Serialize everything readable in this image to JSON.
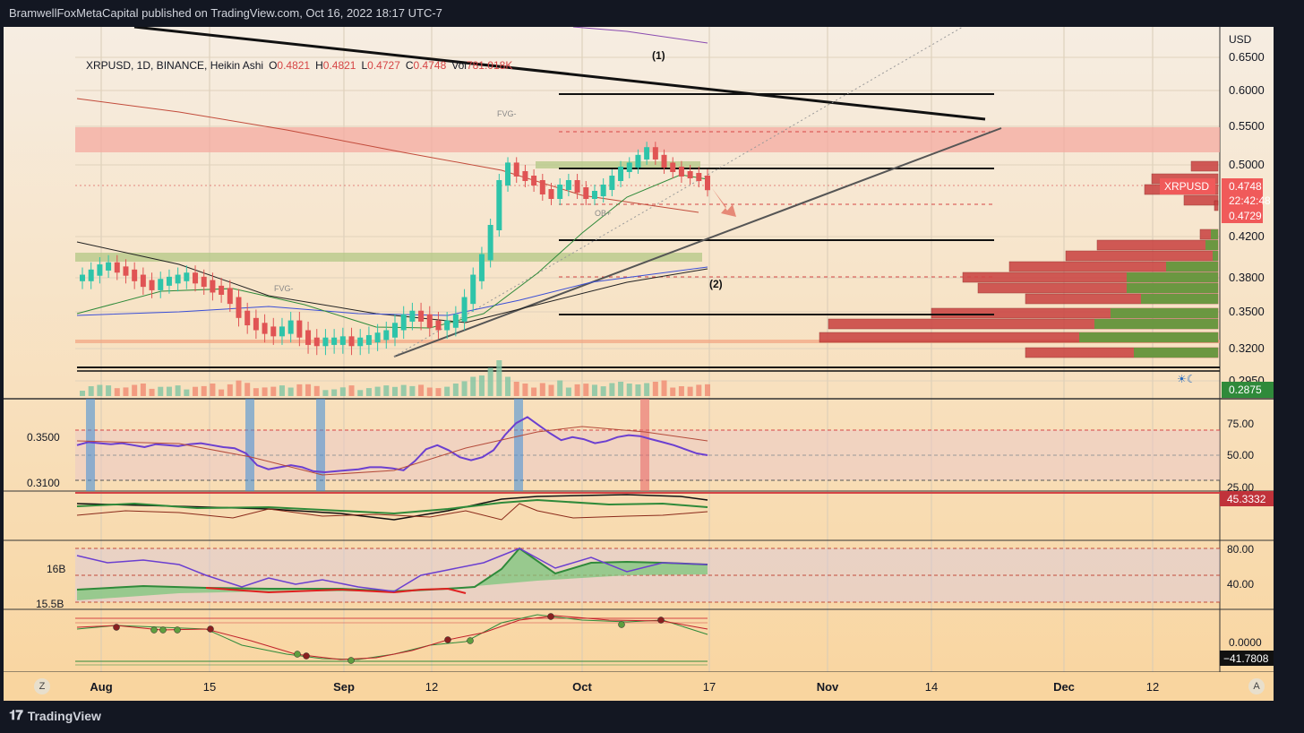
{
  "header": {
    "published_by": "BramwellFoxMetaCapital published on TradingView.com, Oct 16, 2022 18:17 UTC-7"
  },
  "legend": {
    "symbol": "XRPUSD, 1D, BINANCE, Heikin Ashi",
    "o_label": "O",
    "o_value": "0.4821",
    "h_label": "H",
    "h_value": "0.4821",
    "l_label": "L",
    "l_value": "0.4727",
    "c_label": "C",
    "c_value": "0.4748",
    "vol_label": "Vol",
    "vol_value": "781.018K"
  },
  "footer": {
    "brand": "TradingView",
    "zoom_left": "Z",
    "auto_right": "A"
  },
  "colors": {
    "background_top": "#f7ece0",
    "background_bottom": "#f8d7a6",
    "up": "#2ec4a9",
    "down": "#e05454",
    "resistance_zone": "#f4a9a0",
    "support_zone": "#b6c98a",
    "price_tag": "#f05a5a",
    "green_tag": "#2f8a3a"
  },
  "chart_data": [
    {
      "type": "line",
      "title": "XRPUSD, 1D, BINANCE, Heikin Ashi",
      "currency": "USD",
      "x_labels": [
        "Aug",
        "15",
        "Sep",
        "12",
        "Oct",
        "17",
        "Nov",
        "14",
        "Dec",
        "12"
      ],
      "y_ticks": [
        "0.6500",
        "0.6000",
        "0.5500",
        "0.5000",
        "0.4200",
        "0.3800",
        "0.3500",
        "0.3200",
        "0.2950"
      ],
      "ylim": [
        0.29,
        0.67
      ],
      "grid": true,
      "series": [
        {
          "values": [
            0.38,
            0.385,
            0.39,
            0.392,
            0.388,
            0.385,
            0.38,
            0.375,
            0.372,
            0.376,
            0.378,
            0.38,
            0.382,
            0.378,
            0.375,
            0.37,
            0.368,
            0.36,
            0.348,
            0.342,
            0.338,
            0.335,
            0.333,
            0.335,
            0.34,
            0.332,
            0.326,
            0.325,
            0.326,
            0.326,
            0.327,
            0.325,
            0.326,
            0.328,
            0.33,
            0.332,
            0.338,
            0.345,
            0.348,
            0.345,
            0.34,
            0.338,
            0.34,
            0.345,
            0.36,
            0.38,
            0.4,
            0.43,
            0.48,
            0.5,
            0.49,
            0.485,
            0.48,
            0.47,
            0.465,
            0.475,
            0.48,
            0.472,
            0.465,
            0.468,
            0.475,
            0.485,
            0.495,
            0.5,
            0.51,
            0.52,
            0.51,
            0.5,
            0.495,
            0.49,
            0.488,
            0.485,
            0.4748
          ]
        }
      ],
      "annotations": [
        "(1)",
        "(2)",
        "FVG-",
        "FVG-",
        "OB+"
      ],
      "price_tags": [
        {
          "label": "XRPUSD",
          "value": "0.4748"
        },
        {
          "label": "countdown",
          "value": "22:42:48"
        },
        {
          "label": "level",
          "value": "0.4729"
        },
        {
          "label": "level",
          "value": "0.2875"
        }
      ]
    },
    {
      "type": "line",
      "y_ticks": [
        "75.00",
        "50.00",
        "25.00"
      ],
      "left_labels": [
        "0.3500",
        "0.3100"
      ],
      "ylim": [
        20,
        95
      ],
      "series": [
        {
          "values": [
            60,
            63,
            62,
            61,
            62,
            60,
            58,
            61,
            60,
            59,
            61,
            62,
            60,
            58,
            57,
            52,
            40,
            36,
            38,
            40,
            38,
            34,
            33,
            34,
            35,
            36,
            38,
            38,
            37,
            35,
            44,
            56,
            60,
            55,
            48,
            45,
            48,
            55,
            70,
            82,
            88,
            80,
            72,
            65,
            68,
            66,
            62,
            64,
            68,
            70,
            69,
            66,
            63,
            60,
            56,
            52,
            50
          ]
        }
      ]
    },
    {
      "type": "line",
      "price_tag": "45.3332"
    },
    {
      "type": "area",
      "y_ticks": [
        "80.00",
        "40.00"
      ],
      "left_labels": [
        "16B",
        "15.5B"
      ],
      "ylim": [
        20,
        90
      ]
    },
    {
      "type": "line",
      "y_ticks": [
        "0.0000"
      ],
      "price_tag": "−41.7808"
    }
  ]
}
